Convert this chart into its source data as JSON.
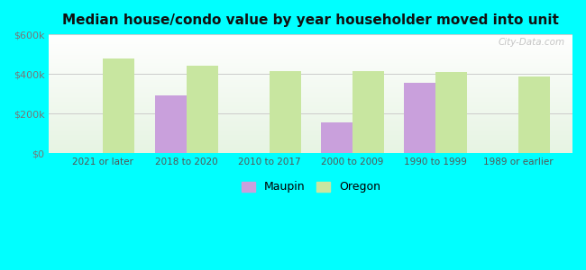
{
  "title": "Median house/condo value by year householder moved into unit",
  "categories": [
    "2021 or later",
    "2018 to 2020",
    "2010 to 2017",
    "2000 to 2009",
    "1990 to 1999",
    "1989 or earlier"
  ],
  "maupin_values": [
    null,
    290000,
    null,
    155000,
    355000,
    null
  ],
  "oregon_values": [
    480000,
    440000,
    415000,
    415000,
    410000,
    385000
  ],
  "maupin_color": "#c9a0dc",
  "oregon_color": "#c8e6a0",
  "background_color": "#00ffff",
  "ylim": [
    0,
    600000
  ],
  "yticks": [
    0,
    200000,
    400000,
    600000
  ],
  "ytick_labels": [
    "$0",
    "$200k",
    "$400k",
    "$600k"
  ],
  "ylabel_color": "#777777",
  "grid_color": "#cccccc",
  "watermark": "City-Data.com",
  "legend_maupin": "Maupin",
  "legend_oregon": "Oregon",
  "bar_width": 0.38
}
